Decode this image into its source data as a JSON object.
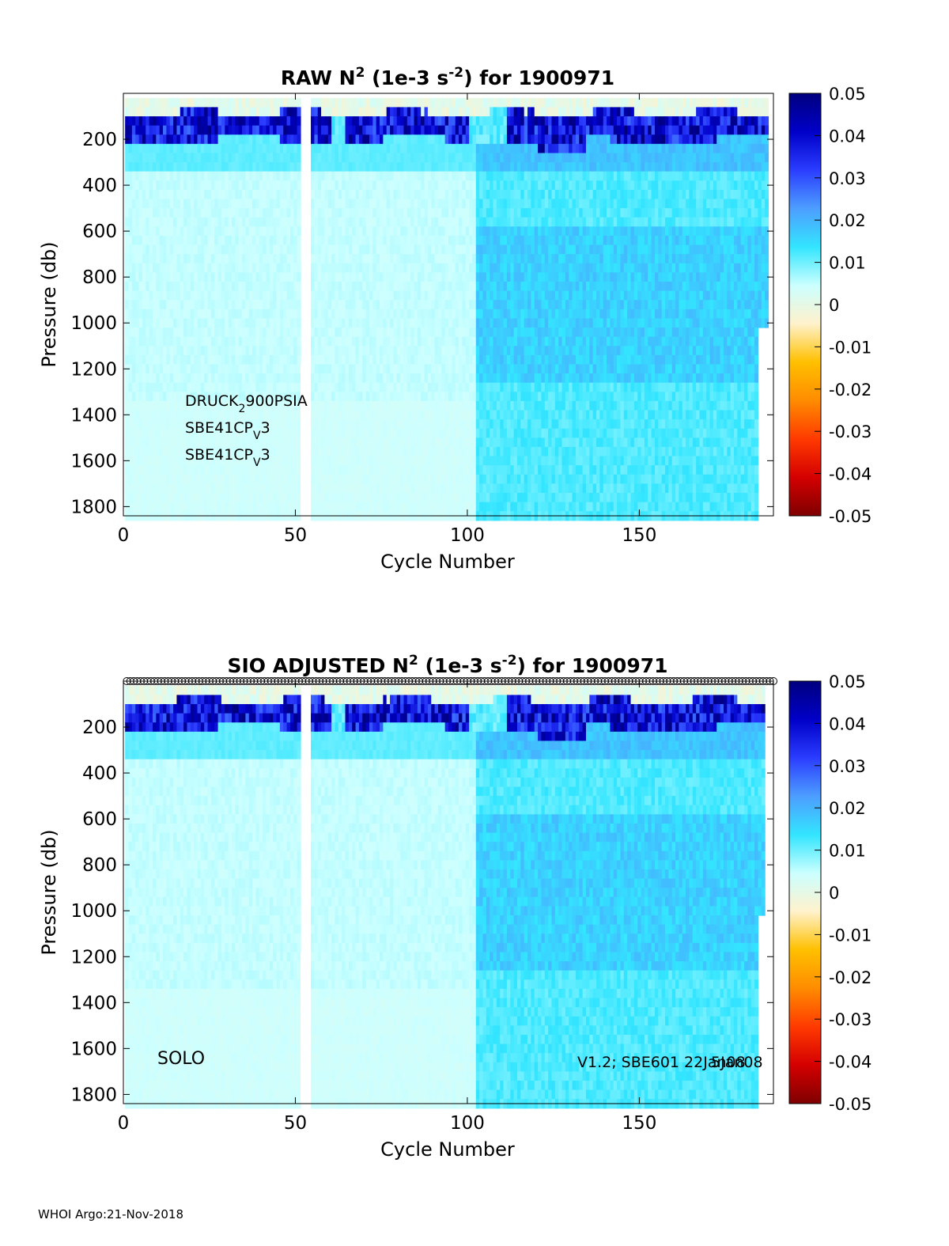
{
  "footer": "WHOI Argo:21-Nov-2018",
  "colors": {
    "colormap": [
      "#7f0000",
      "#d40000",
      "#ff3a00",
      "#ff8c00",
      "#ffc000",
      "#fff2cc",
      "#ccffff",
      "#33e5ff",
      "#4d9eff",
      "#2b3dff",
      "#0000c8",
      "#00007f"
    ]
  },
  "chart_data": [
    {
      "type": "heatmap",
      "title_parts": {
        "prefix": "RAW N",
        "sup1": "2",
        "middle": " (1e-3 s",
        "sup2": "-2",
        "suffix": ") for 1900971"
      },
      "xlabel": "Cycle Number",
      "ylabel": "Pressure (db)",
      "xlim": [
        0,
        189
      ],
      "ylim": [
        1840,
        0
      ],
      "x_ticks": [
        "0",
        "50",
        "100",
        "150"
      ],
      "y_ticks": [
        "200",
        "400",
        "600",
        "800",
        "1000",
        "1200",
        "1400",
        "1600",
        "1800"
      ],
      "x_tick_values": [
        0,
        50,
        100,
        150
      ],
      "y_tick_values": [
        200,
        400,
        600,
        800,
        1000,
        1200,
        1400,
        1600,
        1800
      ],
      "colorbar": {
        "ticks": [
          "0.05",
          "0.04",
          "0.03",
          "0.02",
          "0.01",
          "0",
          "-0.01",
          "-0.02",
          "-0.03",
          "-0.04",
          "-0.05"
        ],
        "clim": [
          -0.05,
          0.05
        ]
      },
      "annotations": [
        {
          "parts": [
            "DRUCK",
            "2",
            "900PSIA"
          ]
        },
        {
          "parts": [
            "SBE41CP",
            "V",
            "3"
          ]
        },
        {
          "parts": [
            "SBE41CP",
            "V",
            "3"
          ]
        }
      ],
      "gap_cycles": [
        52,
        54
      ],
      "surface_markers": false,
      "field": {
        "x_range": [
          1,
          187
        ],
        "p_range": [
          20,
          1840
        ],
        "upper_layer_max_value": 0.05,
        "deep_value_early_cycles": 0.005,
        "deep_value_late_cycles": 0.012,
        "regime_change_cycle": 103
      }
    },
    {
      "type": "heatmap",
      "title_parts": {
        "prefix": "SIO  ADJUSTED N",
        "sup1": "2",
        "middle": " (1e-3 s",
        "sup2": "-2",
        "suffix": ") for 1900971"
      },
      "xlabel": "Cycle Number",
      "ylabel": "Pressure (db)",
      "xlim": [
        0,
        189
      ],
      "ylim": [
        1840,
        0
      ],
      "x_ticks": [
        "0",
        "50",
        "100",
        "150"
      ],
      "y_ticks": [
        "200",
        "400",
        "600",
        "800",
        "1000",
        "1200",
        "1400",
        "1600",
        "1800"
      ],
      "x_tick_values": [
        0,
        50,
        100,
        150
      ],
      "y_tick_values": [
        200,
        400,
        600,
        800,
        1000,
        1200,
        1400,
        1600,
        1800
      ],
      "colorbar": {
        "ticks": [
          "0.05",
          "0.04",
          "0.03",
          "0.02",
          "0.01",
          "0",
          "-0.01",
          "-0.02",
          "-0.03",
          "-0.04",
          "-0.05"
        ],
        "clim": [
          -0.05,
          0.05
        ]
      },
      "annotation_left": "SOLO",
      "annotation_right_a": "V1.2; SBE601 22Jan08",
      "annotation_right_b": "5Jan08",
      "gap_cycles": [
        52,
        54
      ],
      "surface_markers": true,
      "field": {
        "x_range": [
          1,
          186
        ],
        "p_range": [
          20,
          1840
        ],
        "upper_layer_max_value": 0.05,
        "deep_value_early_cycles": 0.005,
        "deep_value_late_cycles": 0.012,
        "regime_change_cycle": 103
      }
    }
  ]
}
